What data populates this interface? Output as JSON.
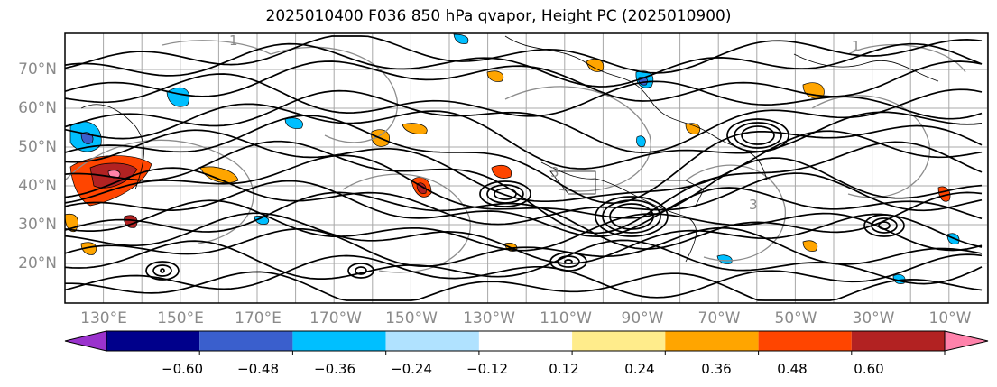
{
  "title": "2025010400 F036 850 hPa qvapor, Height PC (2025010900)",
  "lat_labels": [
    "70°N",
    "60°N",
    "50°N",
    "40°N",
    "30°N",
    "20°N"
  ],
  "lon_labels": [
    "130°E",
    "150°E",
    "170°E",
    "170°W",
    "150°W",
    "130°W",
    "110°W",
    "90°W",
    "70°W",
    "50°W",
    "30°W",
    "10°W"
  ],
  "colorbar": {
    "ticks": [
      "−0.60",
      "−0.48",
      "−0.36",
      "−0.24",
      "−0.12",
      "0.12",
      "0.24",
      "0.36",
      "0.48",
      "0.60"
    ],
    "colors": [
      "#9a32cd",
      "#00008b",
      "#3a5fcd",
      "#00bfff",
      "#b0e2ff",
      "#ffffff",
      "#ffec8b",
      "#ffa500",
      "#ff4500",
      "#b22222",
      "#ff82ab"
    ]
  },
  "contour_labels": [
    "1",
    "1",
    "3",
    "3"
  ],
  "colors": {
    "grid": "#9a9a9a",
    "contour": "#000000",
    "label_text": "#8a8a8a"
  }
}
